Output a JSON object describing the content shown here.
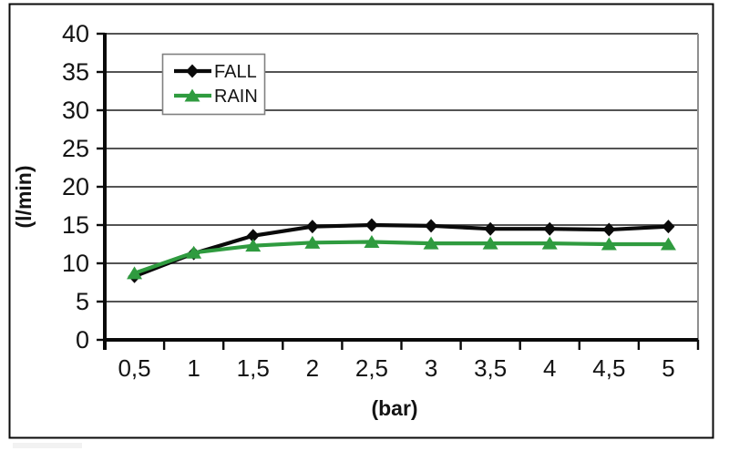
{
  "chart_data": {
    "type": "line",
    "categories": [
      "0,5",
      "1",
      "1,5",
      "2",
      "2,5",
      "3",
      "3,5",
      "4",
      "4,5",
      "5"
    ],
    "series": [
      {
        "name": "FALL",
        "color": "#0a0a0a",
        "marker": "diamond",
        "values": [
          8.3,
          11.3,
          13.6,
          14.8,
          15.0,
          14.9,
          14.5,
          14.5,
          14.4,
          14.8
        ]
      },
      {
        "name": "RAIN",
        "color": "#2f9b3f",
        "marker": "triangle",
        "values": [
          8.7,
          11.4,
          12.3,
          12.7,
          12.8,
          12.6,
          12.6,
          12.6,
          12.5,
          12.5
        ]
      }
    ],
    "title": "",
    "xlabel": "(bar)",
    "ylabel": "(l/min)",
    "ylim": [
      0,
      40
    ],
    "ytick_step": 5,
    "grid": true,
    "legend_position": "top-left-inside"
  },
  "colors": {
    "axis": "#0a0a0a",
    "gridline": "#3c3c3c",
    "plot_border": "#8f8f8f",
    "text": "#141414",
    "legend_border": "#808080",
    "background": "#ffffff"
  }
}
